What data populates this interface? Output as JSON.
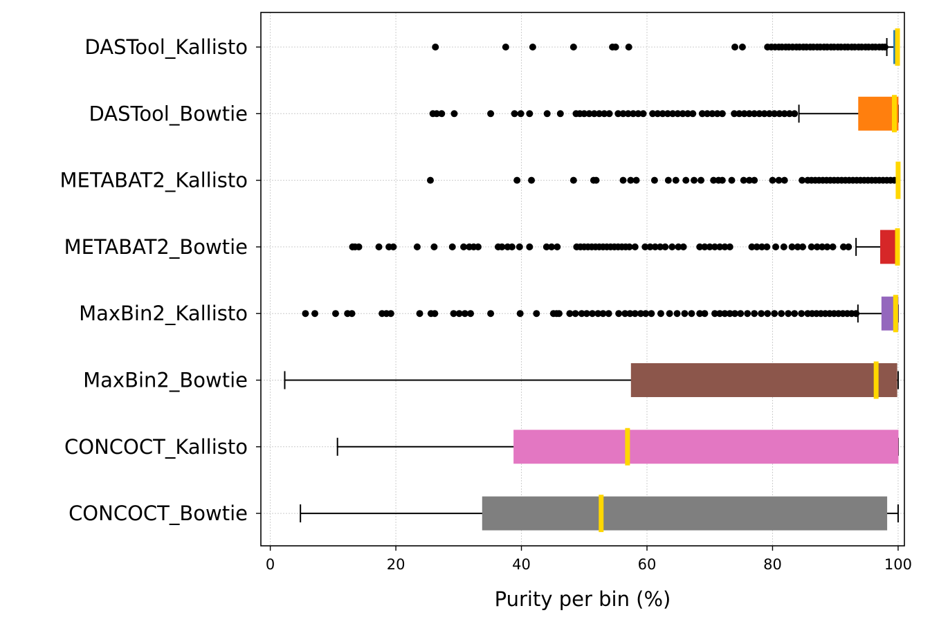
{
  "chart_data": {
    "type": "boxplot",
    "orientation": "horizontal",
    "title": "",
    "xlabel": "Purity per bin (%)",
    "ylabel": "",
    "xlim": [
      -1.5,
      101
    ],
    "xticks": [
      0,
      20,
      40,
      60,
      80,
      100
    ],
    "grid": true,
    "legend": "none",
    "median_color": "#FFD700",
    "categories": [
      "DASTool_Kallisto",
      "DASTool_Bowtie",
      "METABAT2_Kallisto",
      "METABAT2_Bowtie",
      "MaxBin2_Kallisto",
      "MaxBin2_Bowtie",
      "CONCOCT_Kallisto",
      "CONCOCT_Bowtie"
    ],
    "boxes": [
      {
        "name": "DASTool_Kallisto",
        "color": "#1f77b4",
        "whisker_low": 98.2,
        "q1": 99.3,
        "median": 99.9,
        "q3": 100,
        "whisker_high": 100,
        "outliers": [
          26.3,
          37.5,
          41.8,
          48.3,
          54.5,
          55.0,
          57.1,
          74.0,
          75.2,
          79.2,
          79.8,
          80.4,
          81.0,
          81.5,
          82.1,
          82.6,
          83.2,
          83.8,
          84.3,
          84.9,
          85.4,
          86.0,
          86.5,
          87.1,
          87.6,
          88.2,
          88.7,
          89.3,
          89.8,
          90.4,
          90.9,
          91.5,
          92.0,
          92.6,
          93.1,
          93.7,
          94.2,
          94.8,
          95.3,
          95.9,
          96.4,
          97.0,
          97.5,
          97.9
        ]
      },
      {
        "name": "DASTool_Bowtie",
        "color": "#ff7f0e",
        "whisker_low": 84.2,
        "q1": 93.7,
        "median": 99.4,
        "q3": 100,
        "whisker_high": 100,
        "outliers": [
          25.9,
          26.5,
          27.3,
          29.3,
          35.1,
          38.9,
          39.9,
          41.3,
          44.1,
          46.2,
          48.7,
          49.3,
          50.0,
          50.8,
          51.6,
          52.4,
          53.2,
          54.0,
          55.4,
          56.2,
          57.0,
          57.8,
          58.6,
          59.4,
          60.9,
          61.7,
          62.5,
          63.3,
          64.1,
          64.9,
          65.7,
          66.5,
          67.3,
          68.8,
          69.6,
          70.4,
          71.2,
          72.0,
          73.9,
          74.7,
          75.5,
          76.3,
          77.1,
          77.9,
          78.7,
          79.5,
          80.3,
          81.1,
          81.9,
          82.7,
          83.5
        ]
      },
      {
        "name": "METABAT2_Kallisto",
        "color": "#2ca02c",
        "whisker_low": 100,
        "q1": 100,
        "median": 100,
        "q3": 100,
        "whisker_high": 100,
        "outliers": [
          25.5,
          39.3,
          41.6,
          48.3,
          51.5,
          51.9,
          56.2,
          57.4,
          58.3,
          61.2,
          63.4,
          64.6,
          66.2,
          67.5,
          68.6,
          70.6,
          71.4,
          72.0,
          73.5,
          75.4,
          76.3,
          77.1,
          80.0,
          81.0,
          81.9,
          84.7,
          85.6,
          86.2,
          86.8,
          87.4,
          88.0,
          88.6,
          89.2,
          89.8,
          90.4,
          91.0,
          91.6,
          92.2,
          92.8,
          93.4,
          94.0,
          94.6,
          95.2,
          95.8,
          96.4,
          97.0,
          97.6,
          98.2,
          98.8,
          99.4
        ]
      },
      {
        "name": "METABAT2_Bowtie",
        "color": "#d62728",
        "whisker_low": 93.3,
        "q1": 97.2,
        "median": 99.9,
        "q3": 100,
        "whisker_high": 100,
        "outliers": [
          13.1,
          13.5,
          14.1,
          17.3,
          18.9,
          19.6,
          23.4,
          26.1,
          29.0,
          30.8,
          31.7,
          32.4,
          33.1,
          36.3,
          36.9,
          37.8,
          38.5,
          39.7,
          41.3,
          44.0,
          44.8,
          45.7,
          48.8,
          49.4,
          50.0,
          50.6,
          51.2,
          51.8,
          52.4,
          53.0,
          53.6,
          54.2,
          54.8,
          55.4,
          56.0,
          56.6,
          57.2,
          58.1,
          59.7,
          60.5,
          61.3,
          62.1,
          62.9,
          64.0,
          65.0,
          65.8,
          68.4,
          69.2,
          70.0,
          70.8,
          71.6,
          72.4,
          73.2,
          76.7,
          77.5,
          78.3,
          79.1,
          80.5,
          81.8,
          83.1,
          84.0,
          84.8,
          86.2,
          87.1,
          87.9,
          88.7,
          89.6,
          91.3,
          92.1
        ]
      },
      {
        "name": "MaxBin2_Kallisto",
        "color": "#9467bd",
        "whisker_low": 93.6,
        "q1": 97.4,
        "median": 99.6,
        "q3": 100,
        "whisker_high": 100,
        "outliers": [
          5.6,
          7.1,
          10.4,
          12.3,
          13.0,
          17.8,
          18.5,
          19.2,
          23.8,
          25.6,
          26.2,
          29.2,
          30.1,
          31.0,
          31.9,
          35.1,
          39.8,
          42.4,
          45.1,
          45.6,
          46.0,
          47.7,
          48.6,
          49.6,
          50.4,
          51.3,
          52.2,
          53.0,
          53.9,
          55.5,
          56.5,
          57.3,
          58.1,
          59.0,
          59.8,
          60.7,
          62.2,
          63.6,
          64.8,
          66.0,
          67.1,
          68.4,
          69.2,
          70.8,
          71.6,
          72.4,
          73.2,
          74.0,
          74.9,
          76.0,
          77.1,
          78.2,
          79.2,
          80.3,
          81.4,
          82.5,
          83.5,
          84.6,
          85.6,
          86.3,
          87.0,
          87.7,
          88.4,
          89.1,
          89.8,
          90.5,
          91.2,
          91.9,
          92.6,
          93.3
        ]
      },
      {
        "name": "MaxBin2_Bowtie",
        "color": "#8c564b",
        "whisker_low": 2.3,
        "q1": 57.5,
        "median": 96.5,
        "q3": 99.8,
        "whisker_high": 100,
        "outliers": []
      },
      {
        "name": "CONCOCT_Kallisto",
        "color": "#e377c2",
        "whisker_low": 10.7,
        "q1": 38.8,
        "median": 56.9,
        "q3": 100,
        "whisker_high": 100,
        "outliers": []
      },
      {
        "name": "CONCOCT_Bowtie",
        "color": "#7f7f7f",
        "whisker_low": 4.8,
        "q1": 33.8,
        "median": 52.7,
        "q3": 98.2,
        "whisker_high": 100,
        "outliers": []
      }
    ]
  }
}
